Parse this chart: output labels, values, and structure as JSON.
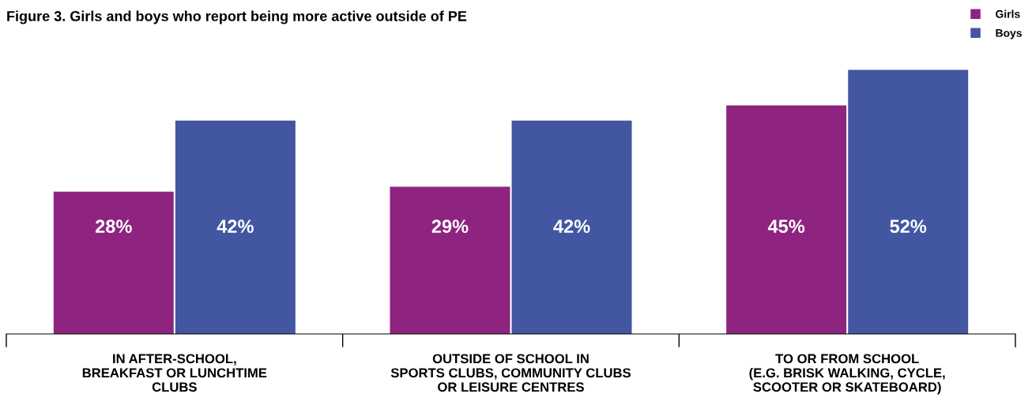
{
  "chart_data": {
    "type": "bar",
    "title": "Figure 3. Girls and boys who report being more active outside of PE",
    "categories": [
      "IN AFTER-SCHOOL,\nBREAKFAST OR LUNCHTIME\nCLUBS",
      "OUTSIDE OF SCHOOL IN\nSPORTS CLUBS, COMMUNITY CLUBS\nOR LEISURE CENTRES",
      "TO OR FROM SCHOOL\n(E.G. BRISK WALKING, CYCLE,\nSCOOTER OR SKATEBOARD)"
    ],
    "series": [
      {
        "name": "Girls",
        "color": "#8e2480",
        "values": [
          28,
          29,
          45
        ],
        "value_labels": [
          "28%",
          "29%",
          "45%"
        ]
      },
      {
        "name": "Boys",
        "color": "#4356a2",
        "values": [
          42,
          42,
          52
        ],
        "value_labels": [
          "42%",
          "42%",
          "52%"
        ]
      }
    ],
    "legend": "top right",
    "grid": false
  }
}
